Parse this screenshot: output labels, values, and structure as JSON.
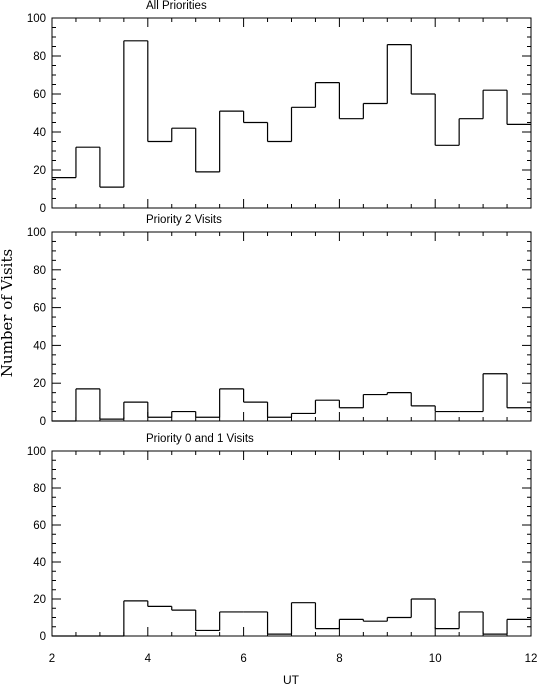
{
  "chart_data": {
    "type": "histogram",
    "xlabel": "UT",
    "ylabel": "Number of Visits",
    "xlim": [
      2,
      12
    ],
    "x_ticks": [
      2,
      4,
      6,
      8,
      10,
      12
    ],
    "y_ticks": [
      0,
      20,
      40,
      60,
      80,
      100
    ],
    "bin_edges": [
      2.0,
      2.5,
      3.0,
      3.5,
      4.0,
      4.5,
      5.0,
      5.5,
      6.0,
      6.5,
      7.0,
      7.5,
      8.0,
      8.5,
      9.0,
      9.5,
      10.0,
      10.5,
      11.0,
      11.5,
      12.0
    ],
    "panels": [
      {
        "title": "All Priorities",
        "ylim": [
          0,
          100
        ],
        "values": [
          16,
          32,
          11,
          88,
          35,
          42,
          19,
          51,
          45,
          35,
          53,
          66,
          47,
          55,
          86,
          60,
          33,
          47,
          62,
          44
        ]
      },
      {
        "title": "Priority 2 Visits",
        "ylim": [
          0,
          100
        ],
        "values": [
          0,
          17,
          1,
          10,
          2,
          5,
          2,
          17,
          10,
          2,
          4,
          11,
          7,
          14,
          15,
          8,
          5,
          5,
          25,
          7
        ]
      },
      {
        "title": "Priority 0 and 1 Visits",
        "ylim": [
          0,
          100
        ],
        "values": [
          0,
          0,
          0,
          19,
          16,
          14,
          3,
          13,
          13,
          1,
          18,
          4,
          9,
          8,
          10,
          20,
          4,
          13,
          1,
          9
        ]
      }
    ]
  }
}
